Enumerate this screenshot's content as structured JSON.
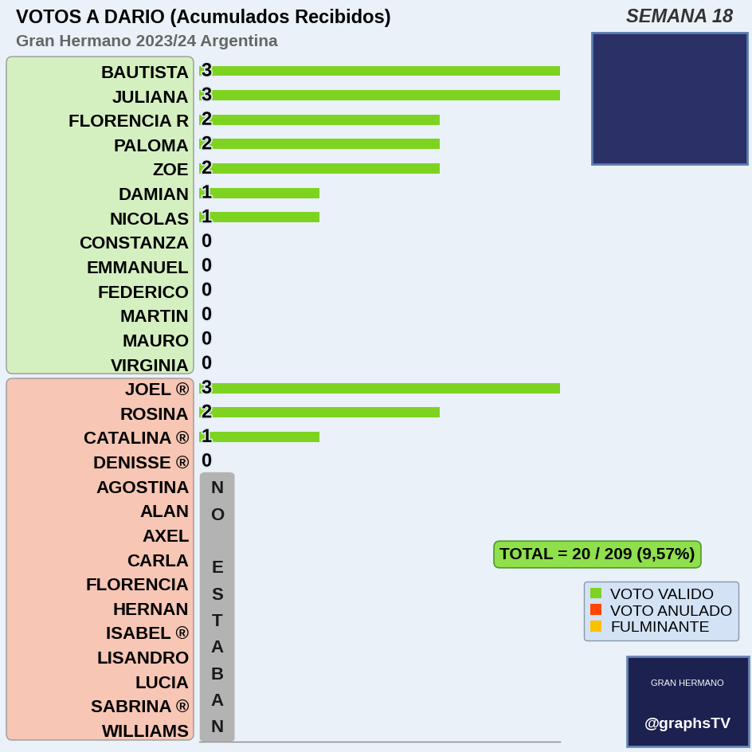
{
  "chart_data": {
    "type": "bar",
    "orientation": "horizontal",
    "stacked": true,
    "title": "VOTOS A DARIO (Acumulados Recibidos)",
    "subtitle": "Gran Hermano 2023/24 Argentina",
    "week": "SEMANA 18",
    "categories": [
      "BAUTISTA",
      "JULIANA",
      "FLORENCIA R",
      "PALOMA",
      "ZOE",
      "DAMIAN",
      "NICOLAS",
      "CONSTANZA",
      "EMMANUEL",
      "FEDERICO",
      "MARTIN",
      "MAURO",
      "VIRGINIA",
      "JOEL ®",
      "ROSINA",
      "CATALINA ®",
      "DENISSE ®",
      "AGOSTINA",
      "ALAN",
      "AXEL",
      "CARLA",
      "FLORENCIA",
      "HERNAN",
      "ISABEL ®",
      "LISANDRO",
      "LUCIA",
      "SABRINA ®",
      "WILLIAMS"
    ],
    "series": [
      {
        "name": "VOTO VALIDO",
        "color": "#7ed321",
        "values": [
          3,
          3,
          2,
          2,
          2,
          1,
          1,
          0,
          0,
          0,
          0,
          0,
          0,
          3,
          2,
          1,
          0,
          null,
          null,
          null,
          null,
          null,
          null,
          null,
          null,
          null,
          null,
          null
        ]
      },
      {
        "name": "VOTO ANULADO",
        "color": "#ff4500",
        "values": [
          0,
          0,
          0,
          0,
          0,
          0,
          0,
          0,
          0,
          0,
          0,
          0,
          0,
          0,
          0,
          0,
          0,
          null,
          null,
          null,
          null,
          null,
          null,
          null,
          null,
          null,
          null,
          null
        ]
      },
      {
        "name": "FULMINANTE",
        "color": "#ffc000",
        "values": [
          0,
          0,
          0,
          0,
          0,
          0,
          0,
          0,
          0,
          0,
          0,
          0,
          0,
          0,
          0,
          0,
          0,
          null,
          null,
          null,
          null,
          null,
          null,
          null,
          null,
          null,
          null,
          null
        ]
      }
    ],
    "xlim": [
      0,
      3
    ],
    "xticks": [],
    "tick_labels": "y",
    "data_labels": true,
    "legend": "lower right",
    "annotations": {
      "absent": "NO ESTABAN",
      "total": "TOTAL = 20 / 209 (9,57%)",
      "logo": "GRAN HERMANO",
      "brand": "@graphsTV"
    }
  }
}
